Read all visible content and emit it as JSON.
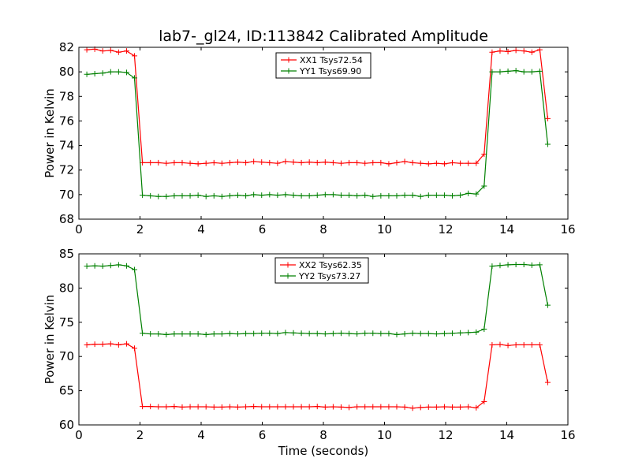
{
  "figure": {
    "title": "lab7-_gl24, ID:113842 Calibrated Amplitude"
  },
  "chart_data": [
    {
      "type": "line",
      "title": "lab7-_gl24, ID:113842 Calibrated Amplitude",
      "xlabel": "",
      "ylabel": "Power in Kelvin",
      "xlim": [
        0,
        16
      ],
      "ylim": [
        68,
        82
      ],
      "xticks": [
        0,
        2,
        4,
        6,
        8,
        10,
        12,
        14,
        16
      ],
      "yticks": [
        68,
        70,
        72,
        74,
        76,
        78,
        80,
        82
      ],
      "grid": false,
      "legend_position": "top-center",
      "x": [
        0.26,
        0.52,
        0.78,
        1.04,
        1.3,
        1.56,
        1.82,
        2.08,
        2.34,
        2.6,
        2.86,
        3.12,
        3.38,
        3.64,
        3.9,
        4.16,
        4.42,
        4.68,
        4.94,
        5.2,
        5.46,
        5.72,
        5.98,
        6.24,
        6.5,
        6.76,
        7.02,
        7.28,
        7.54,
        7.8,
        8.06,
        8.32,
        8.58,
        8.84,
        9.1,
        9.36,
        9.62,
        9.88,
        10.14,
        10.4,
        10.66,
        10.92,
        11.18,
        11.44,
        11.7,
        11.96,
        12.22,
        12.48,
        12.74,
        13.0,
        13.26,
        13.52,
        13.78,
        14.04,
        14.3,
        14.56,
        14.82,
        15.08,
        15.34
      ],
      "series": [
        {
          "name": "XX1 Tsys72.54",
          "color": "#ff0000",
          "values": [
            81.8,
            81.85,
            81.7,
            81.75,
            81.6,
            81.7,
            81.3,
            72.6,
            72.6,
            72.6,
            72.55,
            72.6,
            72.6,
            72.55,
            72.5,
            72.55,
            72.6,
            72.55,
            72.6,
            72.65,
            72.6,
            72.7,
            72.65,
            72.6,
            72.55,
            72.7,
            72.65,
            72.6,
            72.65,
            72.6,
            72.65,
            72.6,
            72.55,
            72.6,
            72.6,
            72.55,
            72.6,
            72.6,
            72.5,
            72.6,
            72.7,
            72.6,
            72.55,
            72.5,
            72.55,
            72.5,
            72.6,
            72.55,
            72.55,
            72.55,
            73.3,
            81.6,
            81.7,
            81.65,
            81.75,
            81.7,
            81.6,
            81.8,
            76.2
          ]
        },
        {
          "name": "YY1 Tsys69.90",
          "color": "#008000",
          "values": [
            79.8,
            79.85,
            79.9,
            80.0,
            80.0,
            79.95,
            79.5,
            69.95,
            69.9,
            69.85,
            69.85,
            69.9,
            69.9,
            69.9,
            69.95,
            69.85,
            69.9,
            69.85,
            69.9,
            69.95,
            69.9,
            70.0,
            69.95,
            70.0,
            69.95,
            70.0,
            69.95,
            69.9,
            69.9,
            69.95,
            70.0,
            70.0,
            69.95,
            69.95,
            69.9,
            69.95,
            69.85,
            69.9,
            69.9,
            69.9,
            69.95,
            69.95,
            69.85,
            69.95,
            69.95,
            69.95,
            69.9,
            69.95,
            70.1,
            70.05,
            70.7,
            80.0,
            80.0,
            80.05,
            80.1,
            80.0,
            80.0,
            80.05,
            74.1
          ]
        }
      ]
    },
    {
      "type": "line",
      "title": "",
      "xlabel": "Time (seconds)",
      "ylabel": "Power in Kelvin",
      "xlim": [
        0,
        16
      ],
      "ylim": [
        60,
        85
      ],
      "xticks": [
        0,
        2,
        4,
        6,
        8,
        10,
        12,
        14,
        16
      ],
      "yticks": [
        60,
        65,
        70,
        75,
        80,
        85
      ],
      "grid": false,
      "legend_position": "top-center",
      "x": [
        0.26,
        0.52,
        0.78,
        1.04,
        1.3,
        1.56,
        1.82,
        2.08,
        2.34,
        2.6,
        2.86,
        3.12,
        3.38,
        3.64,
        3.9,
        4.16,
        4.42,
        4.68,
        4.94,
        5.2,
        5.46,
        5.72,
        5.98,
        6.24,
        6.5,
        6.76,
        7.02,
        7.28,
        7.54,
        7.8,
        8.06,
        8.32,
        8.58,
        8.84,
        9.1,
        9.36,
        9.62,
        9.88,
        10.14,
        10.4,
        10.66,
        10.92,
        11.18,
        11.44,
        11.7,
        11.96,
        12.22,
        12.48,
        12.74,
        13.0,
        13.26,
        13.52,
        13.78,
        14.04,
        14.3,
        14.56,
        14.82,
        15.08,
        15.34
      ],
      "series": [
        {
          "name": "XX2 Tsys62.35",
          "color": "#ff0000",
          "values": [
            71.7,
            71.8,
            71.8,
            71.85,
            71.7,
            71.85,
            71.2,
            62.7,
            62.7,
            62.65,
            62.65,
            62.7,
            62.6,
            62.65,
            62.65,
            62.65,
            62.6,
            62.6,
            62.65,
            62.6,
            62.65,
            62.7,
            62.65,
            62.65,
            62.65,
            62.65,
            62.65,
            62.65,
            62.65,
            62.7,
            62.6,
            62.65,
            62.6,
            62.55,
            62.65,
            62.65,
            62.65,
            62.65,
            62.65,
            62.65,
            62.6,
            62.45,
            62.55,
            62.6,
            62.6,
            62.65,
            62.6,
            62.6,
            62.65,
            62.5,
            63.4,
            71.7,
            71.75,
            71.6,
            71.7,
            71.7,
            71.7,
            71.7,
            66.2
          ]
        },
        {
          "name": "YY2 Tsys73.27",
          "color": "#008000",
          "values": [
            83.2,
            83.25,
            83.2,
            83.3,
            83.4,
            83.25,
            82.7,
            73.4,
            73.3,
            73.3,
            73.2,
            73.3,
            73.3,
            73.3,
            73.3,
            73.2,
            73.3,
            73.3,
            73.35,
            73.3,
            73.35,
            73.35,
            73.4,
            73.4,
            73.35,
            73.5,
            73.45,
            73.4,
            73.35,
            73.35,
            73.3,
            73.35,
            73.4,
            73.35,
            73.3,
            73.4,
            73.4,
            73.35,
            73.35,
            73.2,
            73.3,
            73.4,
            73.35,
            73.35,
            73.3,
            73.35,
            73.4,
            73.45,
            73.5,
            73.55,
            74.0,
            83.2,
            83.3,
            83.4,
            83.45,
            83.45,
            83.35,
            83.4,
            77.5
          ]
        }
      ]
    }
  ]
}
